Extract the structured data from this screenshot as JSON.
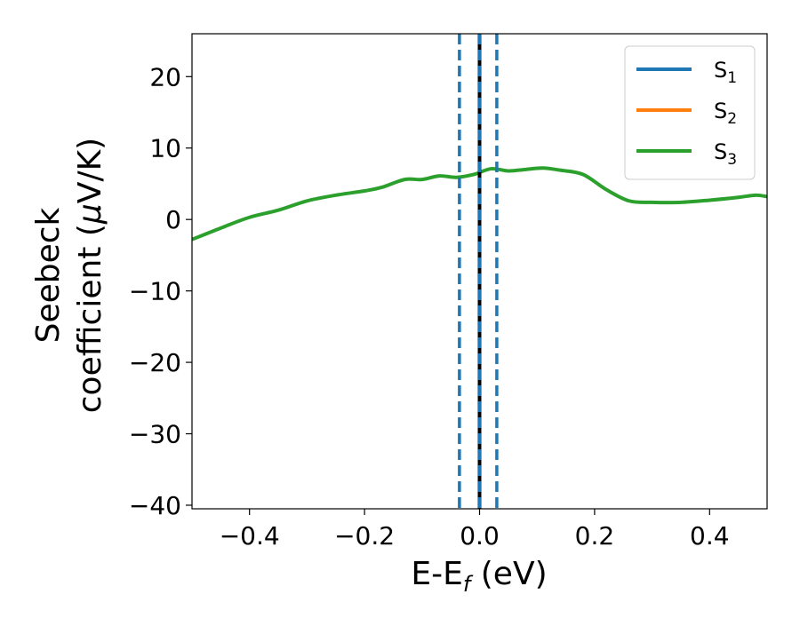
{
  "chart_data": {
    "type": "line",
    "title": "",
    "xlabel": "E-E",
    "xlabel_sub": "f",
    "xlabel_unit": " (eV)",
    "ylabel_line1": "Seebeck",
    "ylabel_line2_prefix": "coefficient  (",
    "ylabel_mu": "μ",
    "ylabel_line2_suffix": "V/K)",
    "xlim": [
      -0.5,
      0.5
    ],
    "ylim": [
      -40.5,
      26
    ],
    "xticks": [
      -0.4,
      -0.2,
      0.0,
      0.2,
      0.4
    ],
    "xtick_labels": [
      "−0.4",
      "−0.2",
      "0.0",
      "0.2",
      "0.4"
    ],
    "yticks": [
      -40,
      -30,
      -20,
      -10,
      0,
      10,
      20
    ],
    "ytick_labels": [
      "−40",
      "−30",
      "−20",
      "−10",
      "0",
      "10",
      "20"
    ],
    "grid": false,
    "legend_position": "top-right",
    "series": [
      {
        "name": "S",
        "sub": "1",
        "color": "#1f77b4",
        "x": [],
        "y": []
      },
      {
        "name": "S",
        "sub": "2",
        "color": "#ff7f0e",
        "x": [],
        "y": []
      },
      {
        "name": "S",
        "sub": "3",
        "color": "#2ca02c",
        "x": [
          -0.5,
          -0.45,
          -0.4,
          -0.35,
          -0.3,
          -0.25,
          -0.2,
          -0.17,
          -0.13,
          -0.1,
          -0.07,
          -0.04,
          -0.01,
          0.02,
          0.05,
          0.08,
          0.11,
          0.14,
          0.18,
          0.22,
          0.26,
          0.3,
          0.35,
          0.4,
          0.45,
          0.48,
          0.5
        ],
        "y": [
          -2.8,
          -1.2,
          0.3,
          1.3,
          2.6,
          3.4,
          4.0,
          4.5,
          5.6,
          5.6,
          6.1,
          5.9,
          6.3,
          7.1,
          6.8,
          7.0,
          7.2,
          6.9,
          6.3,
          4.2,
          2.6,
          2.4,
          2.4,
          2.7,
          3.1,
          3.4,
          3.2
        ]
      }
    ],
    "vlines": [
      {
        "x": -0.035,
        "style": "dashed",
        "color": "#1f77b4"
      },
      {
        "x": 0.0,
        "style": "solid",
        "color": "#000000"
      },
      {
        "x": 0.0,
        "style": "dashed",
        "color": "#1f77b4"
      },
      {
        "x": 0.03,
        "style": "dashed",
        "color": "#1f77b4"
      }
    ]
  }
}
